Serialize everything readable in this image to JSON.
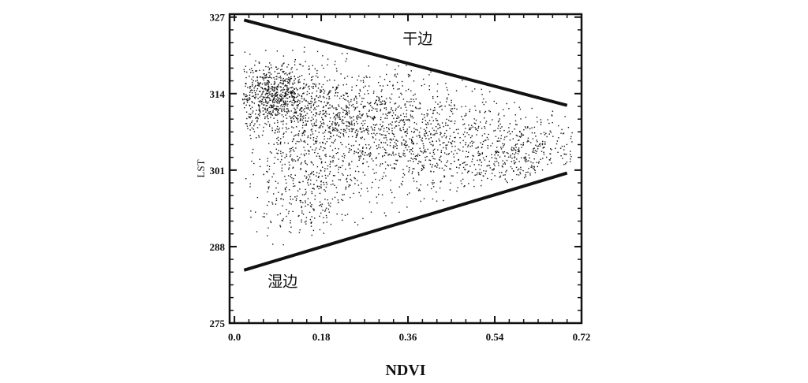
{
  "chart_data": {
    "type": "scatter",
    "title": "",
    "xlabel": "NDVI",
    "ylabel": "LST",
    "xlim": [
      -0.01,
      0.72
    ],
    "ylim": [
      275,
      327.5
    ],
    "x_ticks": [
      {
        "value": 0.0,
        "label": "0.0"
      },
      {
        "value": 0.18,
        "label": "0.18"
      },
      {
        "value": 0.36,
        "label": "0.36"
      },
      {
        "value": 0.54,
        "label": "0.54"
      },
      {
        "value": 0.72,
        "label": "0.72"
      }
    ],
    "y_ticks": [
      {
        "value": 275,
        "label": "275"
      },
      {
        "value": 288,
        "label": "288"
      },
      {
        "value": 301,
        "label": "301"
      },
      {
        "value": 314,
        "label": "314"
      },
      {
        "value": 327,
        "label": "327"
      }
    ],
    "grid": false,
    "legend": "none",
    "point_color": "#111111",
    "point_clusters": [
      {
        "center": [
          0.08,
          314
        ],
        "spread": [
          0.04,
          2.5
        ],
        "count": 600
      },
      {
        "center": [
          0.2,
          310
        ],
        "spread": [
          0.1,
          4
        ],
        "count": 900
      },
      {
        "center": [
          0.15,
          298
        ],
        "spread": [
          0.06,
          4
        ],
        "count": 350
      },
      {
        "center": [
          0.38,
          306
        ],
        "spread": [
          0.1,
          5
        ],
        "count": 800
      },
      {
        "center": [
          0.6,
          304
        ],
        "spread": [
          0.07,
          3
        ],
        "count": 350
      }
    ],
    "edges": [
      {
        "name": "干边",
        "x": [
          0.02,
          0.69
        ],
        "y": [
          326.5,
          312.0
        ]
      },
      {
        "name": "湿边",
        "x": [
          0.02,
          0.69
        ],
        "y": [
          284.0,
          300.5
        ]
      }
    ],
    "annotations": [
      {
        "text": "干边",
        "x": 0.38,
        "y": 322.5
      },
      {
        "text": "湿边",
        "x": 0.1,
        "y": 281.2
      }
    ]
  }
}
